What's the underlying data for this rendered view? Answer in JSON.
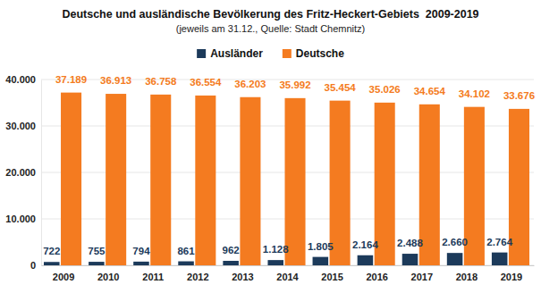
{
  "chart_data": {
    "type": "bar",
    "title": "Deutsche und ausländische Bevölkerung des Fritz-Heckert-Gebiets  2009-2019",
    "subtitle": "(jeweils am 31.12., Quelle: Stadt Chemnitz)",
    "categories": [
      "2009",
      "2010",
      "2011",
      "2012",
      "2013",
      "2014",
      "2015",
      "2016",
      "2017",
      "2018",
      "2019"
    ],
    "series": [
      {
        "name": "Ausländer",
        "color": "#1c3a5a",
        "values": [
          722,
          755,
          794,
          861,
          962,
          1128,
          1805,
          2164,
          2488,
          2660,
          2764
        ],
        "value_labels": [
          "722",
          "755",
          "794",
          "861",
          "962",
          "1.128",
          "1.805",
          "2.164",
          "2.488",
          "2.660",
          "2.764"
        ]
      },
      {
        "name": "Deutsche",
        "color": "#f47b20",
        "values": [
          37189,
          36913,
          36758,
          36554,
          36203,
          35992,
          35454,
          35026,
          34654,
          34102,
          33676
        ],
        "value_labels": [
          "37.189",
          "36.913",
          "36.758",
          "36.554",
          "36.203",
          "35.992",
          "35.454",
          "35.026",
          "34.654",
          "34.102",
          "33.676"
        ]
      }
    ],
    "ylim": [
      0,
      40000
    ],
    "yticks": [
      0,
      {
        "value": 10000,
        "label": "10.000"
      },
      {
        "value": 20000,
        "label": "20.000"
      },
      {
        "value": 30000,
        "label": "30.000"
      },
      {
        "value": 40000,
        "label": "40.000"
      }
    ],
    "grid": true,
    "legend": "top",
    "data_labels": true
  }
}
